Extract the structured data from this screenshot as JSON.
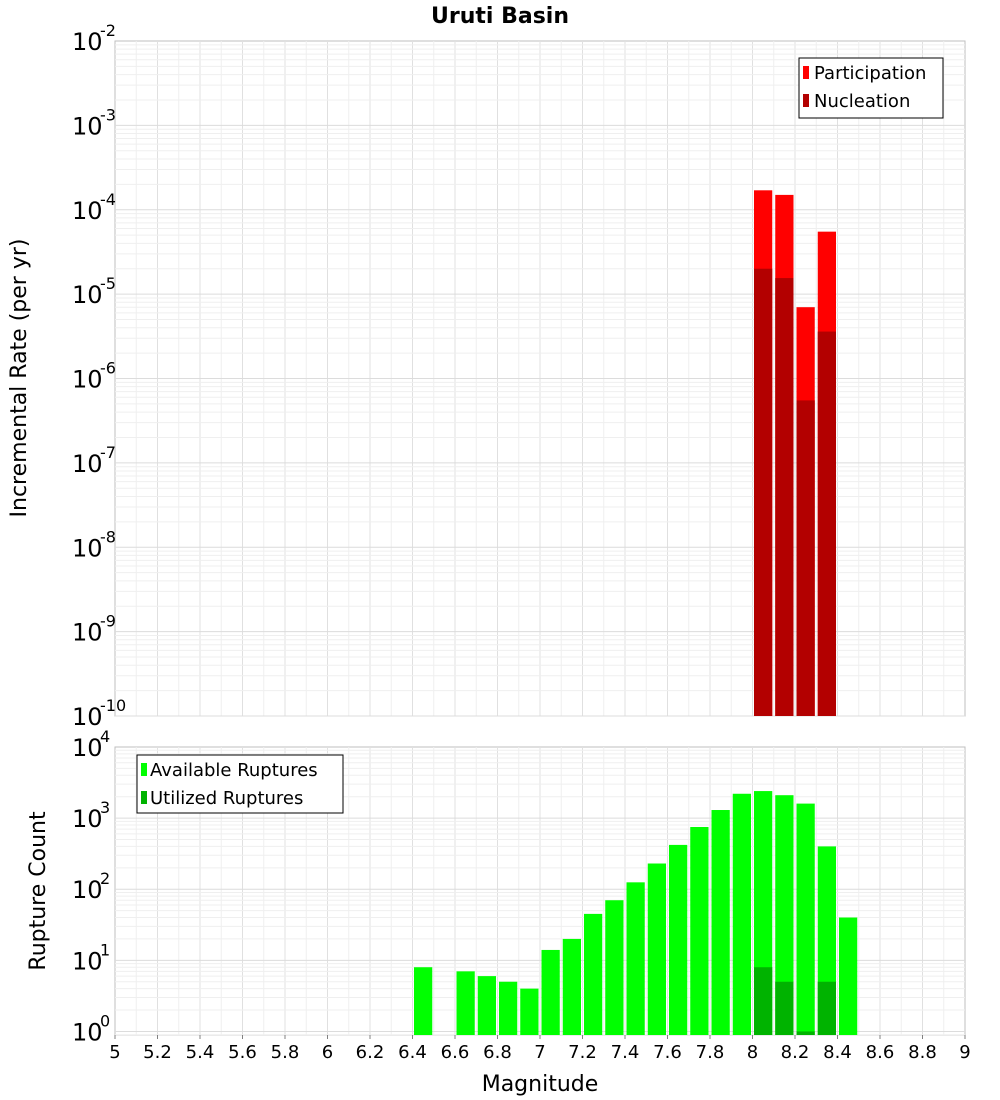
{
  "title": "Uruti Basin",
  "chart_data": [
    {
      "type": "bar",
      "scale": "log",
      "ylabel": "Incremental Rate (per yr)",
      "ylim_exp": [
        -10,
        -2
      ],
      "y_tick_base": "10",
      "y_tick_exponents": [
        "-10",
        "-9",
        "-8",
        "-7",
        "-6",
        "-5",
        "-4",
        "-3",
        "-2"
      ],
      "x_bins": [
        8.05,
        8.15,
        8.25,
        8.35
      ],
      "bin_width": 0.1,
      "series": [
        {
          "name": "Participation",
          "color": "#ff0000",
          "values": [
            0.00017,
            0.00015,
            7e-06,
            5.5e-05
          ]
        },
        {
          "name": "Nucleation",
          "color": "#b30000",
          "values": [
            2e-05,
            1.55e-05,
            5.5e-07,
            3.6e-06
          ]
        }
      ],
      "legend": {
        "position": "top-right",
        "entries": [
          "Participation",
          "Nucleation"
        ]
      }
    },
    {
      "type": "bar",
      "scale": "log",
      "ylabel": "Rupture Count",
      "ylim_exp": [
        -0.05,
        4
      ],
      "y_tick_base": "10",
      "y_tick_exponents": [
        "0",
        "1",
        "2",
        "3",
        "4"
      ],
      "x_bins": [
        6.45,
        6.65,
        6.75,
        6.85,
        6.95,
        7.05,
        7.15,
        7.25,
        7.35,
        7.45,
        7.55,
        7.65,
        7.75,
        7.85,
        7.95,
        8.05,
        8.15,
        8.25,
        8.35,
        8.45
      ],
      "bin_width": 0.1,
      "series": [
        {
          "name": "Available Ruptures",
          "color": "#00ff00",
          "values": [
            8,
            7,
            6,
            5,
            4,
            14,
            20,
            45,
            70,
            125,
            230,
            420,
            750,
            1300,
            2200,
            2400,
            2100,
            1600,
            400,
            40
          ]
        },
        {
          "name": "Utilized Ruptures",
          "color": "#00b300",
          "values": [
            0,
            0,
            0,
            0,
            0,
            0,
            0,
            0,
            0,
            0,
            0,
            0,
            0,
            0,
            0,
            8,
            5,
            1,
            5,
            0
          ]
        }
      ],
      "legend": {
        "position": "top-left",
        "entries": [
          "Available Ruptures",
          "Utilized Ruptures"
        ]
      }
    }
  ],
  "x_axis": {
    "label": "Magnitude",
    "xlim": [
      5,
      9
    ],
    "tick_labels": [
      "5",
      "5.2",
      "5.4",
      "5.6",
      "5.8",
      "6",
      "6.2",
      "6.4",
      "6.6",
      "6.8",
      "7",
      "7.2",
      "7.4",
      "7.6",
      "7.8",
      "8",
      "8.2",
      "8.4",
      "8.6",
      "8.8",
      "9"
    ]
  }
}
